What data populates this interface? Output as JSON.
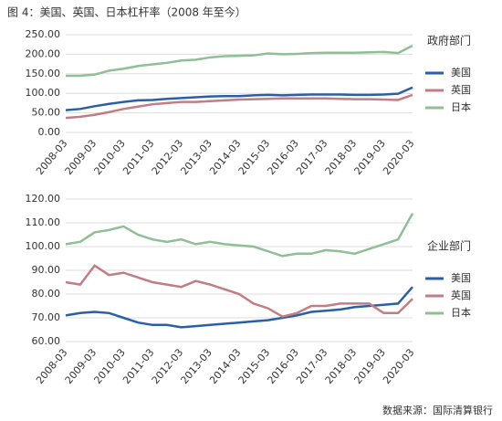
{
  "title": "图 4：美国、英国、日本杠杆率（2008 年至今）",
  "source": "数据来源：国际清算银行",
  "chart_data": [
    {
      "type": "line",
      "title": "政府部门",
      "categories": [
        "2008-03",
        null,
        "2009-03",
        null,
        "2010-03",
        null,
        "2011-03",
        null,
        "2012-03",
        null,
        "2013-03",
        null,
        "2014-03",
        null,
        "2015-03",
        null,
        "2016-03",
        null,
        "2017-03",
        null,
        "2018-03",
        null,
        "2019-03",
        null,
        "2020-03"
      ],
      "series": [
        {
          "name": "美国",
          "color": "#2a5fa8",
          "values": [
            57,
            60,
            67,
            73,
            78,
            82,
            83,
            86,
            88,
            90,
            92,
            93,
            93,
            95,
            96,
            95,
            96,
            97,
            97,
            97,
            96,
            96,
            97,
            99,
            115
          ]
        },
        {
          "name": "英国",
          "color": "#c27c83",
          "values": [
            37,
            40,
            45,
            52,
            60,
            66,
            72,
            75,
            78,
            78,
            80,
            82,
            84,
            85,
            86,
            87,
            87,
            87,
            87,
            86,
            85,
            85,
            84,
            83,
            96
          ]
        },
        {
          "name": "日本",
          "color": "#8fbf95",
          "values": [
            145,
            145,
            148,
            158,
            163,
            170,
            174,
            178,
            184,
            186,
            192,
            195,
            196,
            197,
            202,
            200,
            201,
            203,
            204,
            204,
            204,
            205,
            206,
            203,
            222
          ]
        }
      ],
      "ylim": [
        0,
        250
      ],
      "yticks": [
        {
          "value": 0,
          "label": "0.00"
        },
        {
          "value": 50,
          "label": "50.00"
        },
        {
          "value": 100,
          "label": "100.00"
        },
        {
          "value": 150,
          "label": "150.00"
        },
        {
          "value": 200,
          "label": "200.00"
        },
        {
          "value": 250,
          "label": "250.00"
        }
      ],
      "grid": true,
      "legend": "right"
    },
    {
      "type": "line",
      "title": "企业部门",
      "categories": [
        "2008-03",
        null,
        "2009-03",
        null,
        "2010-03",
        null,
        "2011-03",
        null,
        "2012-03",
        null,
        "2013-03",
        null,
        "2014-03",
        null,
        "2015-03",
        null,
        "2016-03",
        null,
        "2017-03",
        null,
        "2018-03",
        null,
        "2019-03",
        null,
        "2020-03"
      ],
      "series": [
        {
          "name": "美国",
          "color": "#2a5fa8",
          "values": [
            71,
            72,
            72.5,
            72,
            70,
            68,
            67,
            67,
            66,
            66.5,
            67,
            67.5,
            68,
            68.5,
            69,
            70,
            71,
            72.5,
            73,
            73.5,
            74.5,
            75,
            75.5,
            76,
            83
          ]
        },
        {
          "name": "英国",
          "color": "#c27c83",
          "values": [
            85,
            84,
            92,
            88,
            89,
            87,
            85,
            84,
            83,
            85.5,
            84,
            82,
            80,
            76,
            74,
            70.5,
            72,
            75,
            75,
            76,
            76,
            76,
            72,
            72,
            78
          ]
        },
        {
          "name": "日本",
          "color": "#8fbf95",
          "values": [
            101,
            102,
            106,
            107,
            108.5,
            105,
            103,
            102,
            103,
            101,
            102,
            101,
            100.5,
            100,
            98,
            96,
            97,
            97,
            98.5,
            98,
            97,
            99,
            101,
            103,
            114
          ]
        }
      ],
      "ylim": [
        60,
        120
      ],
      "yticks": [
        {
          "value": 60,
          "label": "60.00"
        },
        {
          "value": 70,
          "label": "70.00"
        },
        {
          "value": 80,
          "label": "80.00"
        },
        {
          "value": 90,
          "label": "90.00"
        },
        {
          "value": 100,
          "label": "100.00"
        },
        {
          "value": 110,
          "label": "110.00"
        },
        {
          "value": 120,
          "label": "120.00"
        }
      ],
      "grid": true,
      "legend": "right"
    }
  ]
}
